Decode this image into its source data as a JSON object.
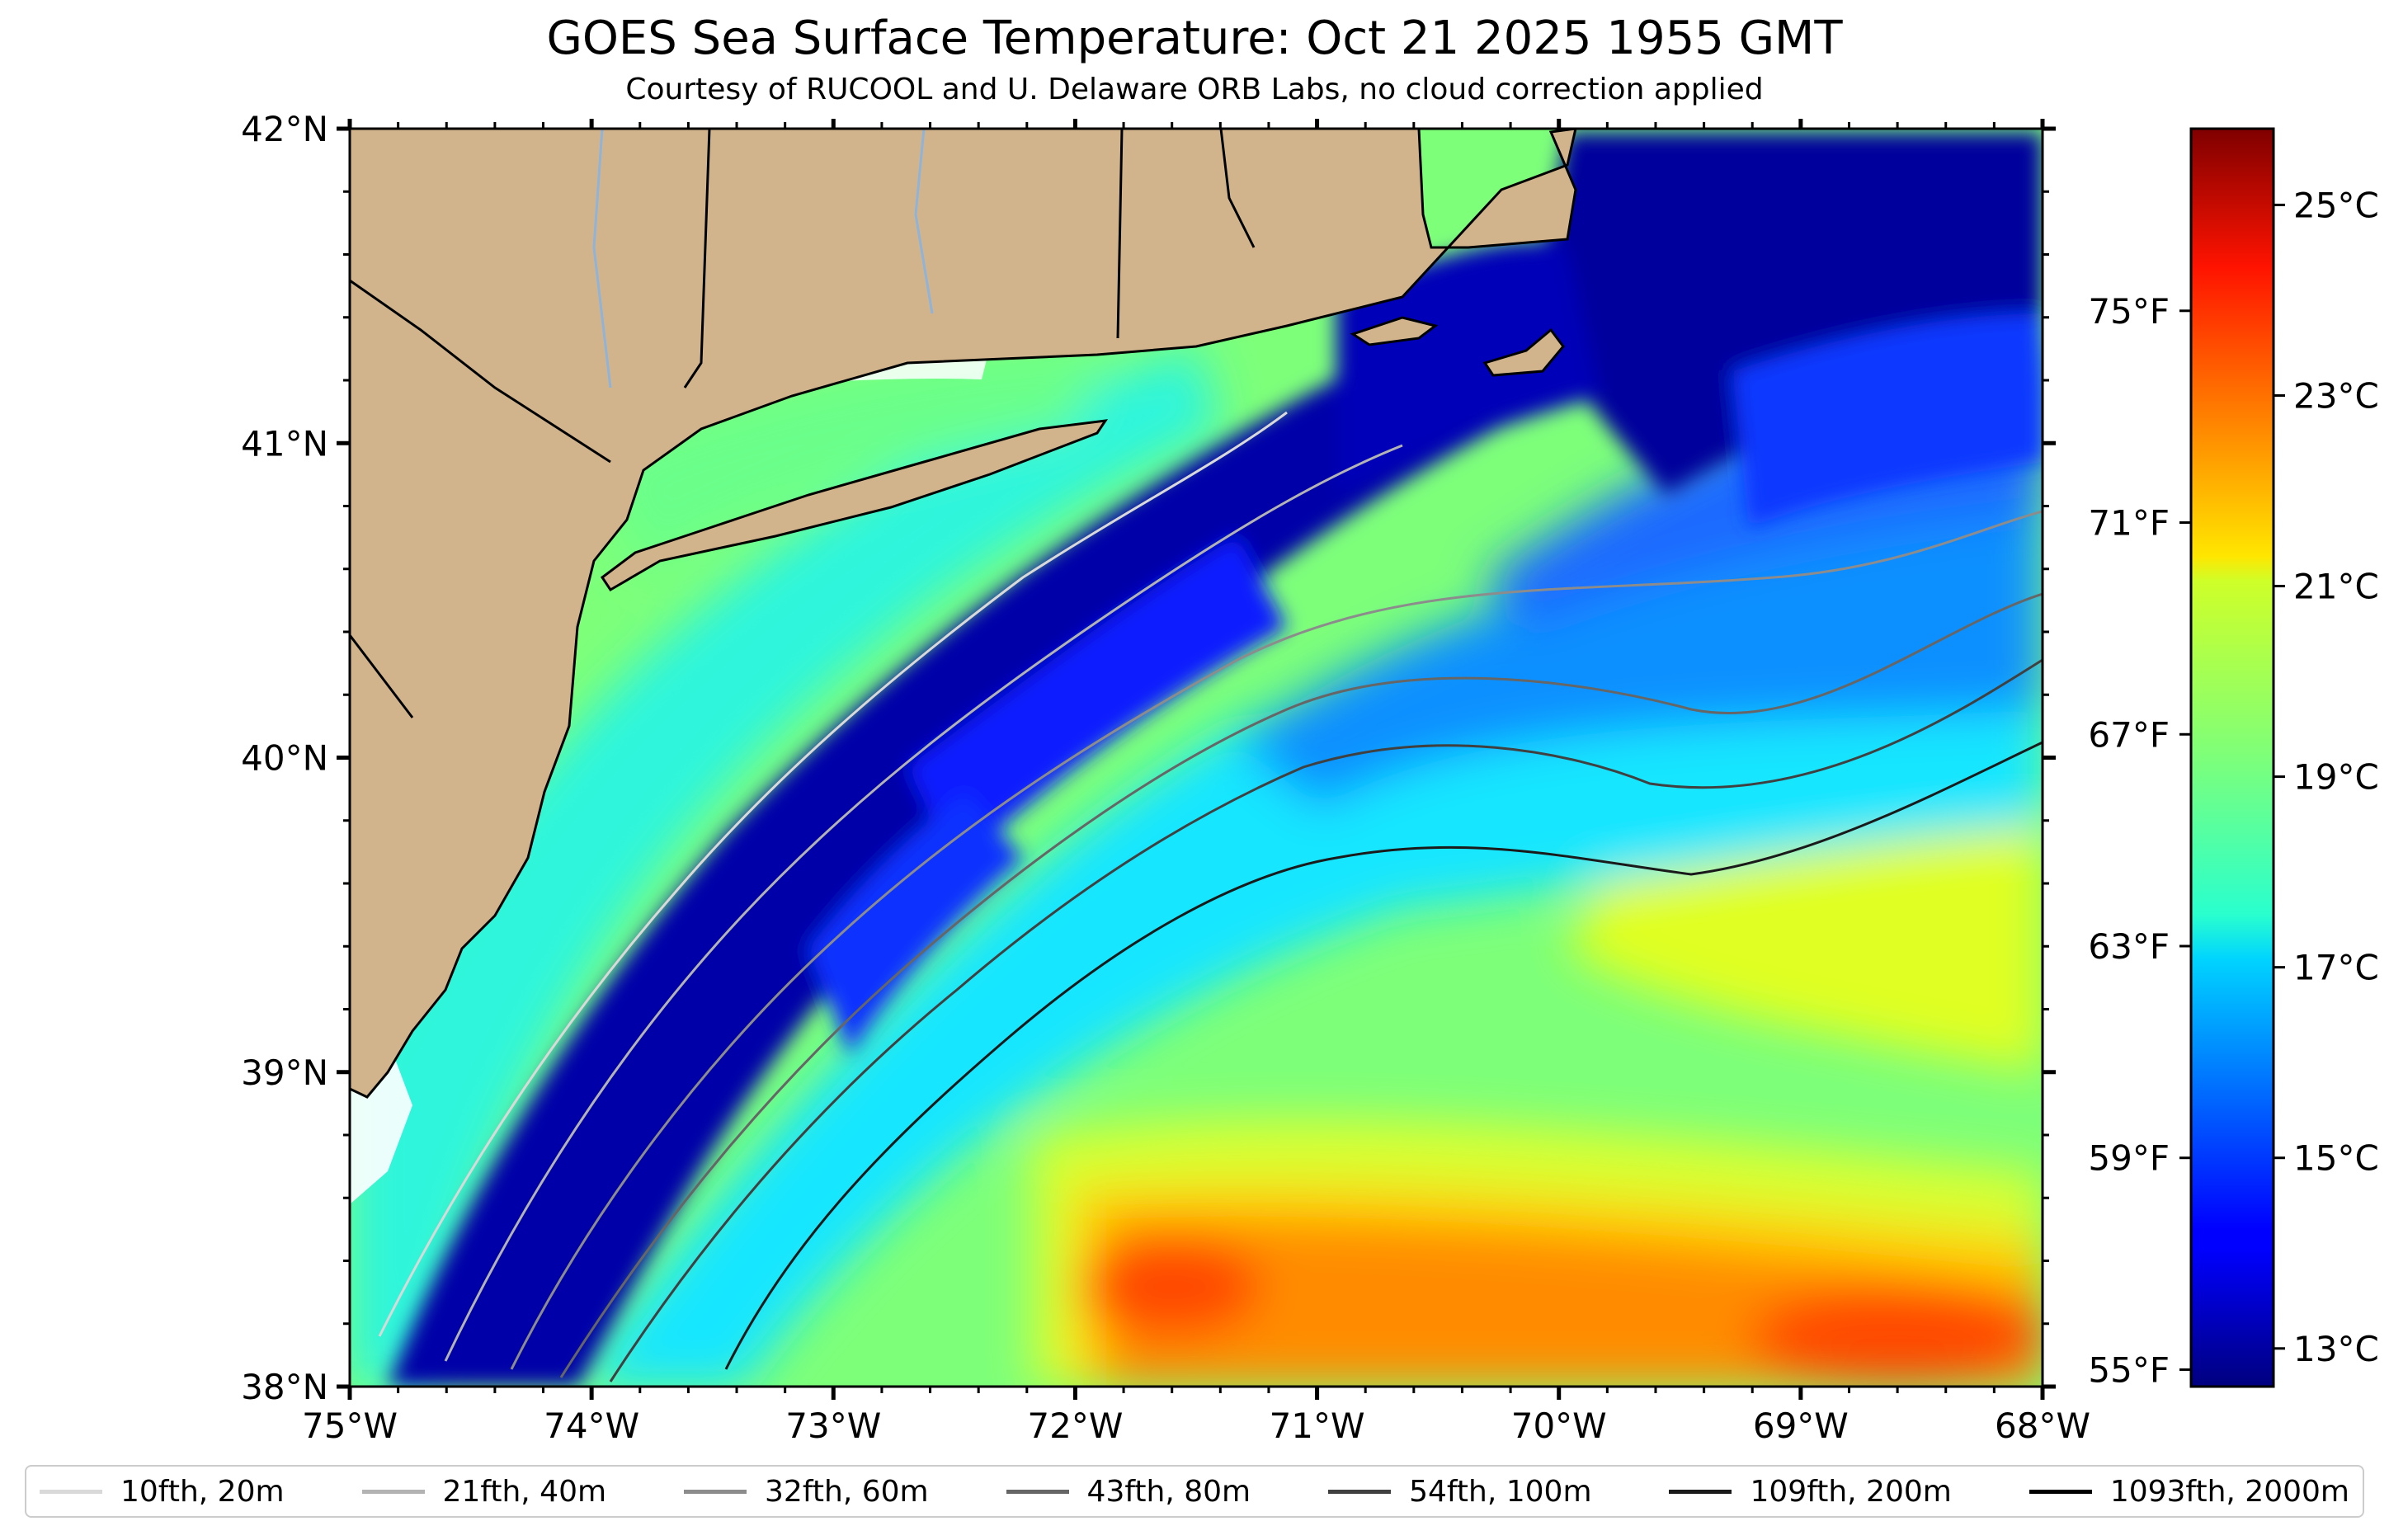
{
  "title": "GOES Sea Surface Temperature: Oct 21 2025 1955 GMT",
  "subtitle": "Courtesy of RUCOOL and U. Delaware ORB Labs, no cloud correction applied",
  "map": {
    "lon_range": [
      -75,
      -68
    ],
    "lat_range": [
      38,
      42
    ],
    "x_ticks": [
      "75°W",
      "74°W",
      "73°W",
      "72°W",
      "71°W",
      "70°W",
      "69°W",
      "68°W"
    ],
    "y_ticks": [
      "42°N",
      "41°N",
      "40°N",
      "39°N",
      "38°N"
    ],
    "land_color": "#d2b48c",
    "colormap": "jet"
  },
  "colorbar": {
    "celsius_range": [
      12.6,
      25.8
    ],
    "celsius_labels": [
      "25°C",
      "23°C",
      "21°C",
      "19°C",
      "17°C",
      "15°C",
      "13°C"
    ],
    "celsius_values": [
      25,
      23,
      21,
      19,
      17,
      15,
      13
    ],
    "fahrenheit_labels": [
      "75°F",
      "71°F",
      "67°F",
      "63°F",
      "59°F",
      "55°F"
    ],
    "fahrenheit_values": [
      75,
      71,
      67,
      63,
      59,
      55
    ]
  },
  "legend": [
    {
      "label": "10fth, 20m",
      "color": "#d9d9d9"
    },
    {
      "label": "21fth, 40m",
      "color": "#b3b3b3"
    },
    {
      "label": "32fth, 60m",
      "color": "#8c8c8c"
    },
    {
      "label": "43fth, 80m",
      "color": "#666666"
    },
    {
      "label": "54fth, 100m",
      "color": "#404040"
    },
    {
      "label": "109fth, 200m",
      "color": "#1a1a1a"
    },
    {
      "label": "1093fth, 2000m",
      "color": "#000000"
    }
  ]
}
